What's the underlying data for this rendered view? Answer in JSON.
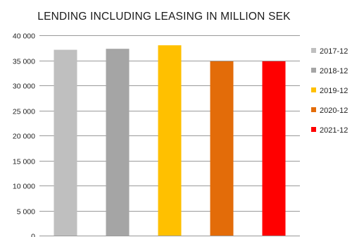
{
  "chart_data": {
    "type": "bar",
    "title": "LENDING INCLUDING LEASING IN MILLION SEK",
    "xlabel": "",
    "ylabel": "",
    "ylim": [
      0,
      40000
    ],
    "y_ticks": [
      0,
      5000,
      10000,
      15000,
      20000,
      25000,
      30000,
      35000,
      40000
    ],
    "y_tick_labels": [
      "0",
      "5 000",
      "10 000",
      "15 000",
      "20 000",
      "25 000",
      "30 000",
      "35 000",
      "40 000"
    ],
    "grid": true,
    "legend_position": "right",
    "categories": [
      "2017-12",
      "2018-12",
      "2019-12",
      "2020-12",
      "2021-12"
    ],
    "values": [
      37100,
      37300,
      38000,
      34800,
      34800
    ],
    "colors": [
      "#bfbfbf",
      "#a5a5a5",
      "#ffc000",
      "#e36c09",
      "#ff0000"
    ]
  }
}
